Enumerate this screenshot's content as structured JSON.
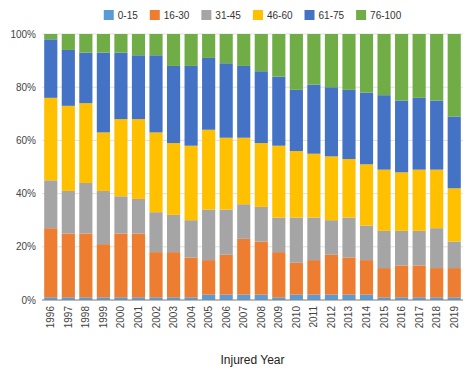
{
  "chart_data": {
    "type": "bar",
    "stacked": true,
    "grid": true,
    "legend": "top",
    "x_label": "Injured Year",
    "categories": [
      "1996",
      "1997",
      "1998",
      "1999",
      "2000",
      "2001",
      "2002",
      "2003",
      "2004",
      "2005",
      "2006",
      "2007",
      "2008",
      "2009",
      "2010",
      "2011",
      "2012",
      "2013",
      "2014",
      "2015",
      "2016",
      "2017",
      "2018",
      "2019"
    ],
    "series": [
      {
        "name": "0-15",
        "color": "#5B9BD5",
        "values": [
          1,
          1,
          1,
          1,
          1,
          1,
          1,
          1,
          1,
          2,
          2,
          2,
          2,
          1,
          2,
          2,
          2,
          2,
          2,
          1,
          1,
          1,
          1,
          1
        ]
      },
      {
        "name": "16-30",
        "color": "#ED7D31",
        "values": [
          26,
          24,
          24,
          20,
          24,
          24,
          17,
          17,
          15,
          13,
          15,
          21,
          20,
          17,
          12,
          13,
          15,
          14,
          13,
          11,
          12,
          12,
          11,
          11
        ]
      },
      {
        "name": "31-45",
        "color": "#A5A5A5",
        "values": [
          18,
          16,
          19,
          20,
          14,
          13,
          15,
          14,
          14,
          19,
          17,
          13,
          13,
          13,
          17,
          16,
          13,
          15,
          13,
          14,
          13,
          13,
          15,
          10
        ]
      },
      {
        "name": "46-60",
        "color": "#FFC000",
        "values": [
          31,
          32,
          30,
          22,
          29,
          30,
          30,
          27,
          28,
          30,
          27,
          25,
          24,
          27,
          25,
          24,
          24,
          22,
          23,
          23,
          22,
          23,
          22,
          20
        ]
      },
      {
        "name": "61-75",
        "color": "#4472C4",
        "values": [
          22,
          21,
          19,
          30,
          25,
          24,
          29,
          29,
          30,
          27,
          28,
          27,
          27,
          26,
          23,
          26,
          26,
          26,
          27,
          28,
          27,
          27,
          26,
          27
        ]
      },
      {
        "name": "76-100",
        "color": "#70AD47",
        "values": [
          2,
          6,
          7,
          7,
          7,
          8,
          8,
          12,
          12,
          9,
          11,
          12,
          14,
          16,
          21,
          19,
          20,
          21,
          22,
          23,
          25,
          24,
          25,
          31
        ]
      }
    ],
    "ylim": [
      0,
      100
    ],
    "yticks": [
      {
        "value": 0,
        "label": "0%"
      },
      {
        "value": 20,
        "label": "20%"
      },
      {
        "value": 40,
        "label": "40%"
      },
      {
        "value": 60,
        "label": "60%"
      },
      {
        "value": 80,
        "label": "80%"
      },
      {
        "value": 100,
        "label": "100%"
      }
    ]
  }
}
